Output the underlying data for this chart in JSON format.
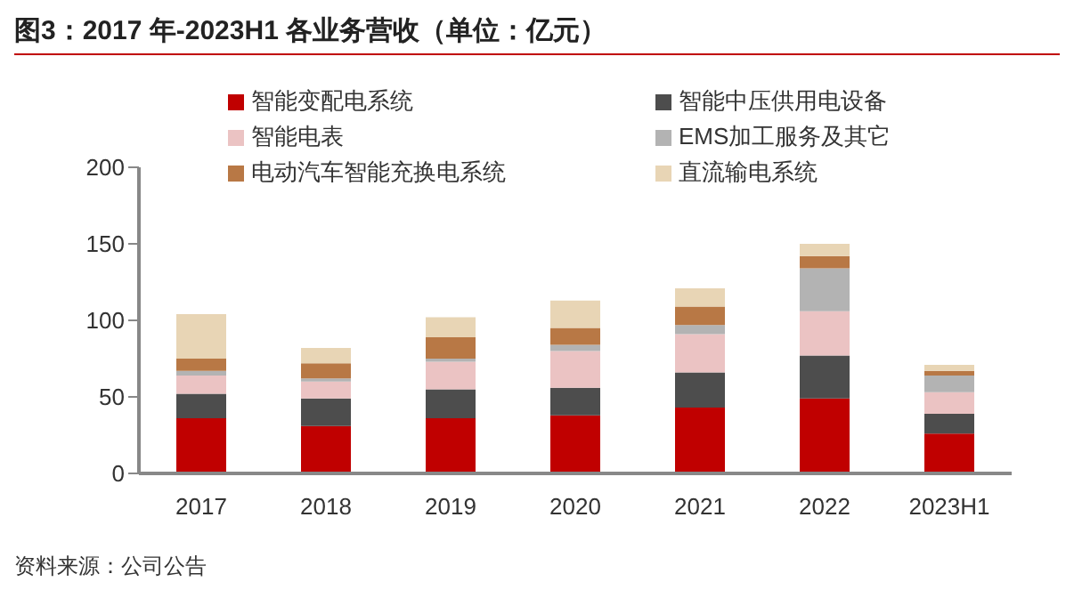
{
  "chart_data": {
    "type": "bar",
    "title": "图3：2017 年-2023H1 各业务营收（单位：亿元）",
    "categories": [
      "2017",
      "2018",
      "2019",
      "2020",
      "2021",
      "2022",
      "2023H1"
    ],
    "stacked": true,
    "series": [
      {
        "name": "智能变配电系统",
        "color": "#c00000",
        "values": [
          36,
          31,
          36,
          38,
          43,
          49,
          26
        ]
      },
      {
        "name": "智能中压供用电设备",
        "color": "#4d4d4d",
        "values": [
          16,
          18,
          19,
          18,
          23,
          28,
          13
        ]
      },
      {
        "name": "智能电表",
        "color": "#ebc3c3",
        "values": [
          12,
          11,
          18,
          24,
          25,
          29,
          14
        ]
      },
      {
        "name": "EMS加工服务及其它",
        "color": "#b3b3b3",
        "values": [
          3,
          2,
          2,
          4,
          6,
          28,
          11
        ]
      },
      {
        "name": "电动汽车智能充换电系统",
        "color": "#b87845",
        "values": [
          8,
          10,
          14,
          11,
          12,
          8,
          3
        ]
      },
      {
        "name": "直流输电系统",
        "color": "#e8d5b5",
        "values": [
          29,
          10,
          13,
          18,
          12,
          8,
          4
        ]
      }
    ],
    "ylim": [
      0,
      200
    ],
    "yticks": [
      0,
      50,
      100,
      150,
      200
    ],
    "grid": false,
    "legend": "top",
    "annotations": [
      "资料来源：公司公告"
    ]
  }
}
